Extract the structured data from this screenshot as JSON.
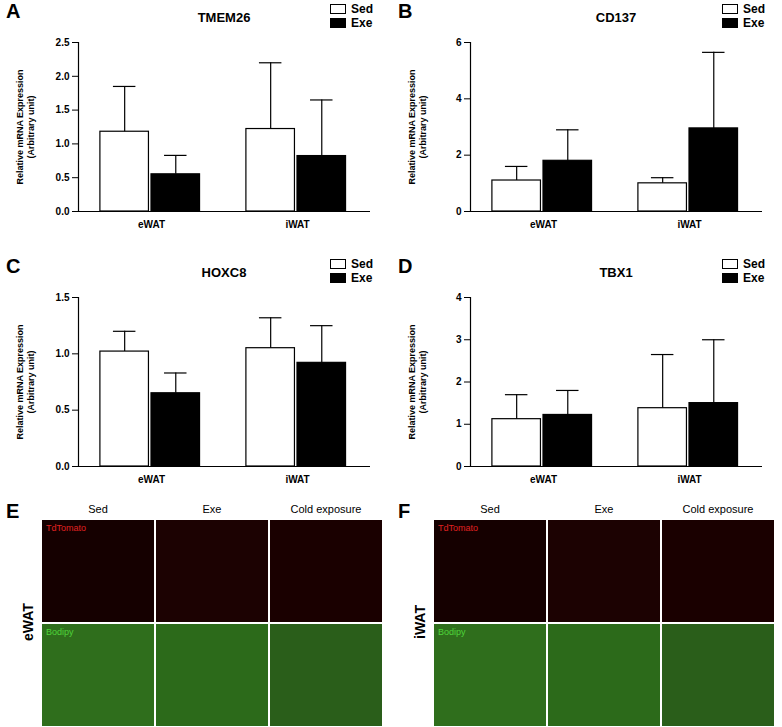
{
  "chart_data": [
    {
      "type": "bar",
      "panel": "A",
      "title": "TMEM26",
      "ylabel": "Relative mRNA Expression\n(Arbitrary unit)",
      "categories": [
        "eWAT",
        "iWAT"
      ],
      "series": [
        {
          "name": "Sed",
          "color": "#ffffff",
          "values": [
            1.18,
            1.22
          ],
          "errors": [
            0.67,
            0.98
          ]
        },
        {
          "name": "Exe",
          "color": "#000000",
          "values": [
            0.55,
            0.82
          ],
          "errors": [
            0.28,
            0.83
          ]
        }
      ],
      "ylim": [
        0,
        2.5
      ],
      "yticks": [
        {
          "value": 0,
          "label": "0.0"
        },
        {
          "value": 0.5,
          "label": "0.5"
        },
        {
          "value": 1,
          "label": "1.0"
        },
        {
          "value": 1.5,
          "label": "1.5"
        },
        {
          "value": 2,
          "label": "2.0"
        },
        {
          "value": 2.5,
          "label": "2.5"
        }
      ],
      "legend": "upper right"
    },
    {
      "type": "bar",
      "panel": "B",
      "title": "CD137",
      "ylabel": "Relative mRNA Expression\n(Arbitrary unit)",
      "categories": [
        "eWAT",
        "iWAT"
      ],
      "series": [
        {
          "name": "Sed",
          "color": "#ffffff",
          "values": [
            1.1,
            1.0
          ],
          "errors": [
            0.5,
            0.2
          ]
        },
        {
          "name": "Exe",
          "color": "#000000",
          "values": [
            1.8,
            2.95
          ],
          "errors": [
            1.1,
            2.7
          ]
        }
      ],
      "ylim": [
        0,
        6
      ],
      "yticks": [
        0,
        2,
        4,
        6
      ],
      "legend": "upper right"
    },
    {
      "type": "bar",
      "panel": "C",
      "title": "HOXC8",
      "ylabel": "Relative mRNA Expression\n(Arbitrary unit)",
      "categories": [
        "eWAT",
        "iWAT"
      ],
      "series": [
        {
          "name": "Sed",
          "color": "#ffffff",
          "values": [
            1.02,
            1.05
          ],
          "errors": [
            0.18,
            0.27
          ]
        },
        {
          "name": "Exe",
          "color": "#000000",
          "values": [
            0.65,
            0.92
          ],
          "errors": [
            0.18,
            0.33
          ]
        }
      ],
      "ylim": [
        0,
        1.5
      ],
      "yticks": [
        {
          "value": 0,
          "label": "0.0"
        },
        {
          "value": 0.5,
          "label": "0.5"
        },
        {
          "value": 1,
          "label": "1.0"
        },
        {
          "value": 1.5,
          "label": "1.5"
        }
      ],
      "legend": "upper right"
    },
    {
      "type": "bar",
      "panel": "D",
      "title": "TBX1",
      "ylabel": "Relative mRNA Expression\n(Arbitrary unit)",
      "categories": [
        "eWAT",
        "iWAT"
      ],
      "series": [
        {
          "name": "Sed",
          "color": "#ffffff",
          "values": [
            1.12,
            1.38
          ],
          "errors": [
            0.58,
            1.27
          ]
        },
        {
          "name": "Exe",
          "color": "#000000",
          "values": [
            1.22,
            1.5
          ],
          "errors": [
            0.58,
            1.5
          ]
        }
      ],
      "ylim": [
        0,
        4
      ],
      "yticks": [
        0,
        1,
        2,
        3,
        4
      ],
      "legend": "upper right"
    }
  ],
  "image_panels": [
    {
      "panel": "E",
      "tissue": "eWAT",
      "columns": [
        "Sed",
        "Exe",
        "Cold exposure"
      ],
      "rows": [
        "TdTomato",
        "Bodipy"
      ]
    },
    {
      "panel": "F",
      "tissue": "iWAT",
      "columns": [
        "Sed",
        "Exe",
        "Cold exposure"
      ],
      "rows": [
        "TdTomato",
        "Bodipy"
      ]
    }
  ]
}
